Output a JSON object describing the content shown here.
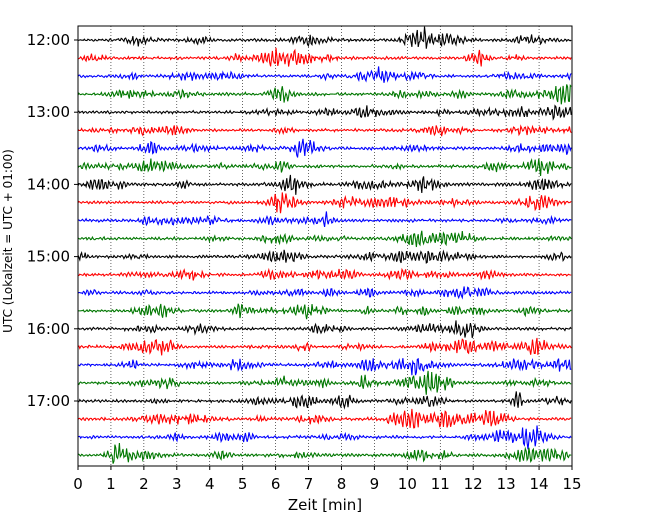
{
  "chart_data": {
    "type": "line",
    "title": "",
    "xlabel": "Zeit  [min]",
    "ylabel": "UTC (Lokalzeit = UTC + 01:00)",
    "xlim": [
      0,
      15
    ],
    "x_ticks": [
      "0",
      "1",
      "2",
      "3",
      "4",
      "5",
      "6",
      "7",
      "8",
      "9",
      "10",
      "11",
      "12",
      "13",
      "14",
      "15"
    ],
    "y_ticks": [
      {
        "label": "12:00",
        "row": 0
      },
      {
        "label": "13:00",
        "row": 4
      },
      {
        "label": "14:00",
        "row": 8
      },
      {
        "label": "15:00",
        "row": 12
      },
      {
        "label": "16:00",
        "row": 16
      },
      {
        "label": "17:00",
        "row": 20
      }
    ],
    "x_grid": "dotted vertical at each minute",
    "trace_colors": [
      "#000000",
      "#ff0000",
      "#0000ff",
      "#007700"
    ],
    "traces": [
      "12:00",
      "12:15",
      "12:30",
      "12:45",
      "13:00",
      "13:15",
      "13:30",
      "13:45",
      "14:00",
      "14:15",
      "14:30",
      "14:45",
      "15:00",
      "15:15",
      "15:30",
      "15:45",
      "16:00",
      "16:15",
      "16:30",
      "16:45",
      "17:00",
      "17:15",
      "17:30",
      "17:45"
    ],
    "trace_minutes": 15
  }
}
